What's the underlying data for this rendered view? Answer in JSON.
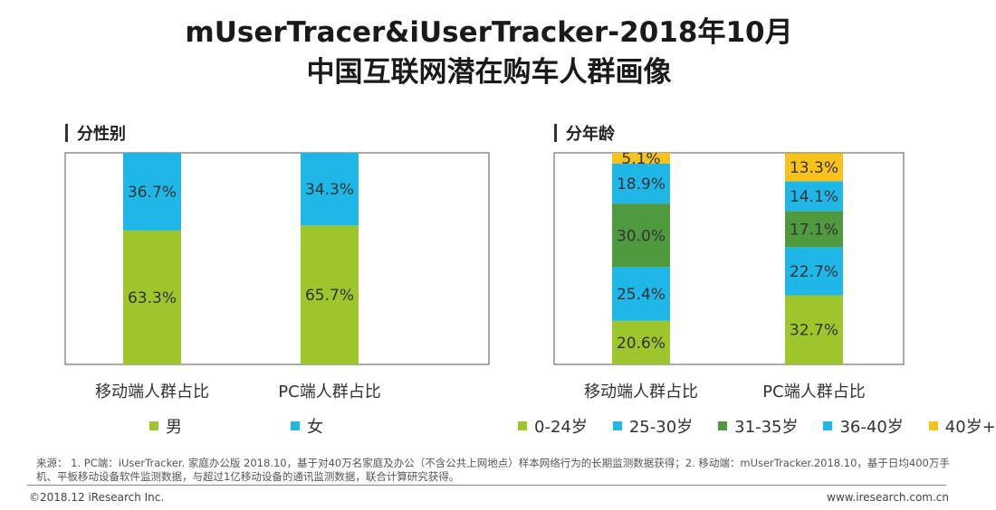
{
  "title_line1": "mUserTracer&iUserTracker-2018年10月",
  "title_line2": "中国互联网潜在购车人群画像",
  "charts": [
    {
      "section_title": "分性别",
      "chart_data": {
        "type": "bar",
        "stacked": true,
        "categories": [
          "移动端人群占比",
          "PC端人群占比"
        ],
        "series": [
          {
            "name": "男",
            "color": "#9dc62d",
            "values": [
              63.3,
              65.7
            ],
            "labels": [
              "63.3%",
              "65.7%"
            ]
          },
          {
            "name": "女",
            "color": "#1fb6e8",
            "values": [
              36.7,
              34.3
            ],
            "labels": [
              "36.7%",
              "34.3%"
            ]
          }
        ],
        "ylim": [
          0,
          100
        ],
        "grid": false,
        "legend": "bottom"
      }
    },
    {
      "section_title": "分年龄",
      "chart_data": {
        "type": "bar",
        "stacked": true,
        "categories": [
          "移动端人群占比",
          "PC端人群占比"
        ],
        "series": [
          {
            "name": "0-24岁",
            "color": "#9dc62d",
            "values": [
              20.6,
              32.7
            ],
            "labels": [
              "20.6%",
              "32.7%"
            ]
          },
          {
            "name": "25-30岁",
            "color": "#1fb6e8",
            "values": [
              25.4,
              22.7
            ],
            "labels": [
              "25.4%",
              "22.7%"
            ]
          },
          {
            "name": "31-35岁",
            "color": "#4f9a3e",
            "values": [
              30.0,
              17.1
            ],
            "labels": [
              "30.0%",
              "17.1%"
            ]
          },
          {
            "name": "36-40岁",
            "color": "#1fb6e8",
            "values": [
              18.9,
              14.1
            ],
            "labels": [
              "18.9%",
              "14.1%"
            ]
          },
          {
            "name": "40岁+",
            "color": "#f6c21b",
            "values": [
              5.1,
              13.3
            ],
            "labels": [
              "5.1%",
              "13.3%"
            ]
          }
        ],
        "ylim": [
          0,
          100
        ],
        "grid": false,
        "legend": "bottom"
      }
    }
  ],
  "source_text": "来源： 1. PC端：iUserTracker. 家庭办公版 2018.10，基于对40万名家庭及办公（不含公共上网地点）样本网络行为的长期监测数据获得；2. 移动端：mUserTracker.2018.10，基于日均400万手机、平板移动设备软件监测数据，与超过1亿移动设备的通讯监测数据，联合计算研究获得。",
  "footer_left": "©2018.12 iResearch Inc.",
  "footer_right": "www.iresearch.com.cn"
}
